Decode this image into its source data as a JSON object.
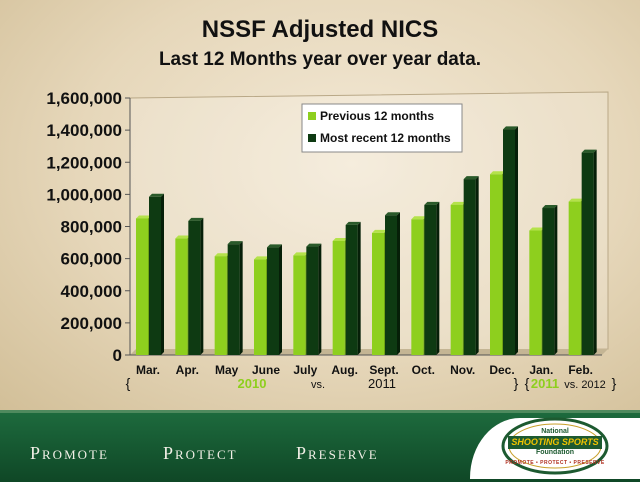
{
  "slide": {
    "title": "NSSF Adjusted NICS",
    "subtitle": "Last 12 Months year over year data."
  },
  "chart_data": {
    "type": "bar",
    "categories": [
      "Mar.",
      "Apr.",
      "May",
      "June",
      "July",
      "Aug.",
      "Sept.",
      "Oct.",
      "Nov.",
      "Dec.",
      "Jan.",
      "Feb."
    ],
    "series": [
      {
        "name": "Previous 12 months",
        "color": "#8ecf1e",
        "values": [
          850000,
          725000,
          615000,
          595000,
          620000,
          710000,
          760000,
          845000,
          935000,
          1125000,
          775000,
          955000
        ]
      },
      {
        "name": "Most recent 12 months",
        "color": "#0e3a12",
        "values": [
          985000,
          835000,
          690000,
          670000,
          675000,
          810000,
          870000,
          935000,
          1095000,
          1405000,
          915000,
          1260000
        ]
      }
    ],
    "ylim": [
      0,
      1600000
    ],
    "yticks": [
      "0",
      "200,000",
      "400,000",
      "600,000",
      "800,000",
      "1,000,000",
      "1,200,000",
      "1,400,000",
      "1,600,000"
    ],
    "legend_position": "top-center",
    "grid": false,
    "annotations": {
      "brace_open_1": "{",
      "year_2010": "2010",
      "vs_1": "vs.",
      "year_2011": "2011",
      "brace_close_1": "}",
      "brace_open_2": "{",
      "year_2011_b": "2011",
      "vs_2012": "vs. 2012",
      "brace_close_2": "}"
    }
  },
  "footer": {
    "motto": [
      "Promote",
      "Protect",
      "Preserve"
    ],
    "logo_lines": [
      "National",
      "SHOOTING SPORTS",
      "Foundation",
      "PROMOTE • PROTECT • PRESERVE"
    ]
  }
}
